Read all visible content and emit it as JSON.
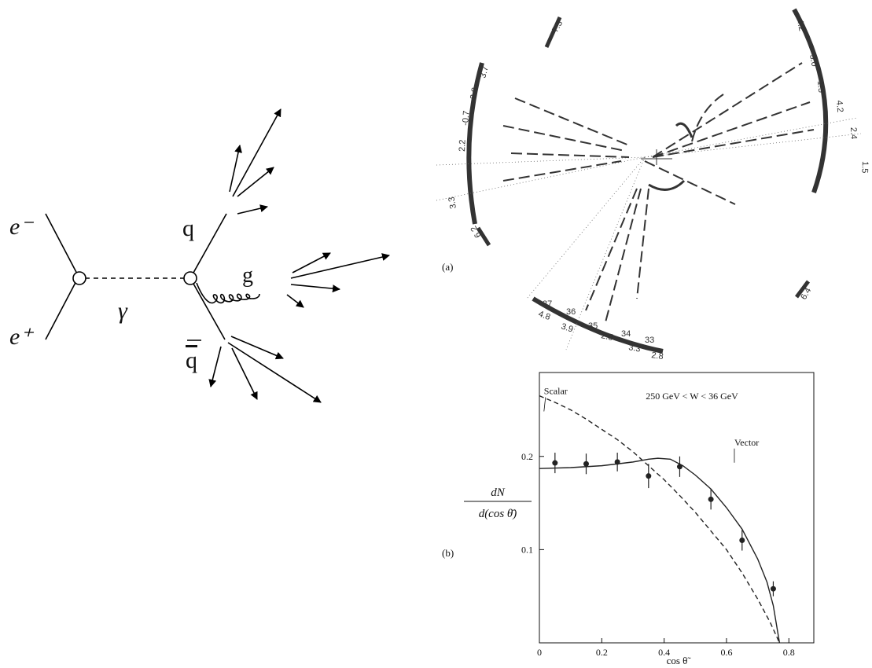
{
  "feynman_diagram": {
    "labels": {
      "electron": "e⁻",
      "positron": "e⁺",
      "photon": "γ",
      "quark": "q",
      "antiquark": "q",
      "gluon": "g"
    }
  },
  "event_display": {
    "panel_label": "(a)",
    "energy_labels": [
      "7.3",
      "3.7",
      "2.8",
      "-0.7",
      "2.2",
      "3.3",
      "6.2",
      "4.2",
      "3.0",
      "1.5",
      "4.2",
      "2.4",
      "1.5",
      "6.4",
      "4.8",
      "3.9",
      "2.5",
      "3.3",
      "2.8"
    ],
    "counter_labels": [
      "37",
      "36",
      "35",
      "34",
      "33"
    ]
  },
  "chart_data": {
    "type": "line",
    "panel_label": "(b)",
    "annotation": "250 GeV < W < 36 GeV",
    "y_label": {
      "numerator": "dN",
      "denominator": "d(cos θ̄)"
    },
    "x_label": "cos θ̃",
    "xlim": [
      0,
      0.88
    ],
    "ylim": [
      0,
      0.29
    ],
    "xticks": [
      0,
      0.2,
      0.4,
      0.6,
      0.8
    ],
    "yticks": [
      0.1,
      0.2
    ],
    "series": [
      {
        "name": "Scalar",
        "color": "#222222",
        "style": "dashed",
        "x": [
          0,
          0.05,
          0.1,
          0.15,
          0.2,
          0.25,
          0.3,
          0.35,
          0.4,
          0.45,
          0.5,
          0.55,
          0.6,
          0.65,
          0.7,
          0.74,
          0.77
        ],
        "values": [
          0.265,
          0.258,
          0.25,
          0.24,
          0.229,
          0.218,
          0.205,
          0.19,
          0.175,
          0.158,
          0.14,
          0.12,
          0.1,
          0.075,
          0.047,
          0.022,
          0
        ]
      },
      {
        "name": "Vector",
        "color": "#222222",
        "style": "solid",
        "x": [
          0,
          0.1,
          0.2,
          0.3,
          0.35,
          0.38,
          0.42,
          0.46,
          0.5,
          0.55,
          0.6,
          0.65,
          0.7,
          0.73,
          0.75,
          0.77
        ],
        "values": [
          0.187,
          0.188,
          0.19,
          0.194,
          0.197,
          0.198,
          0.197,
          0.19,
          0.18,
          0.165,
          0.145,
          0.122,
          0.09,
          0.065,
          0.04,
          0
        ]
      },
      {
        "color": "#222222",
        "style": "points",
        "x": [
          0.05,
          0.15,
          0.25,
          0.35,
          0.45,
          0.55,
          0.65,
          0.75
        ],
        "values": [
          0.193,
          0.192,
          0.194,
          0.179,
          0.189,
          0.154,
          0.11,
          0.058
        ],
        "errors": [
          0.011,
          0.011,
          0.01,
          0.013,
          0.011,
          0.011,
          0.011,
          0.008
        ]
      }
    ]
  }
}
